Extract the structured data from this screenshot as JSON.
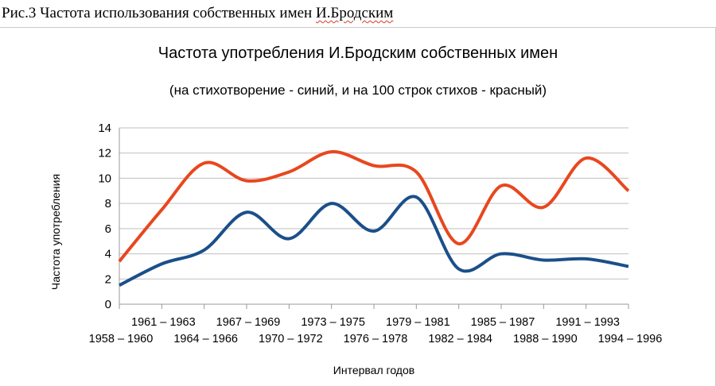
{
  "caption": {
    "prefix": "Рис.3 Частота использования собственных имен ",
    "underlined": "И.Бродским"
  },
  "chart_data": {
    "type": "line",
    "title": "Частота употребления И.Бродским собственных имен",
    "subtitle": "(на стихотворение - синий, и на 100 строк стихов - красный)",
    "xlabel": "Интервал годов",
    "ylabel": "Частота употребления",
    "ylim": [
      0,
      14
    ],
    "yticks": [
      0,
      2,
      4,
      6,
      8,
      10,
      12,
      14
    ],
    "grid": true,
    "legend": "none",
    "categories": [
      "1958 – 1960",
      "1961 – 1963",
      "1964 – 1966",
      "1967 – 1969",
      "1970 – 1972",
      "1973 – 1975",
      "1976 – 1978",
      "1979 – 1981",
      "1982 – 1984",
      "1985 – 1987",
      "1988 – 1990",
      "1991 – 1993",
      "1994 – 1996"
    ],
    "series": [
      {
        "color": "#e8471f",
        "values": [
          3.4,
          7.5,
          11.2,
          9.8,
          10.5,
          12.1,
          11.0,
          10.5,
          4.8,
          9.4,
          7.7,
          11.6,
          9.0
        ]
      },
      {
        "color": "#1a4f8a",
        "values": [
          1.5,
          3.2,
          4.3,
          7.3,
          5.2,
          8.0,
          5.8,
          8.5,
          2.8,
          4.0,
          3.5,
          3.6,
          3.0
        ]
      }
    ]
  }
}
